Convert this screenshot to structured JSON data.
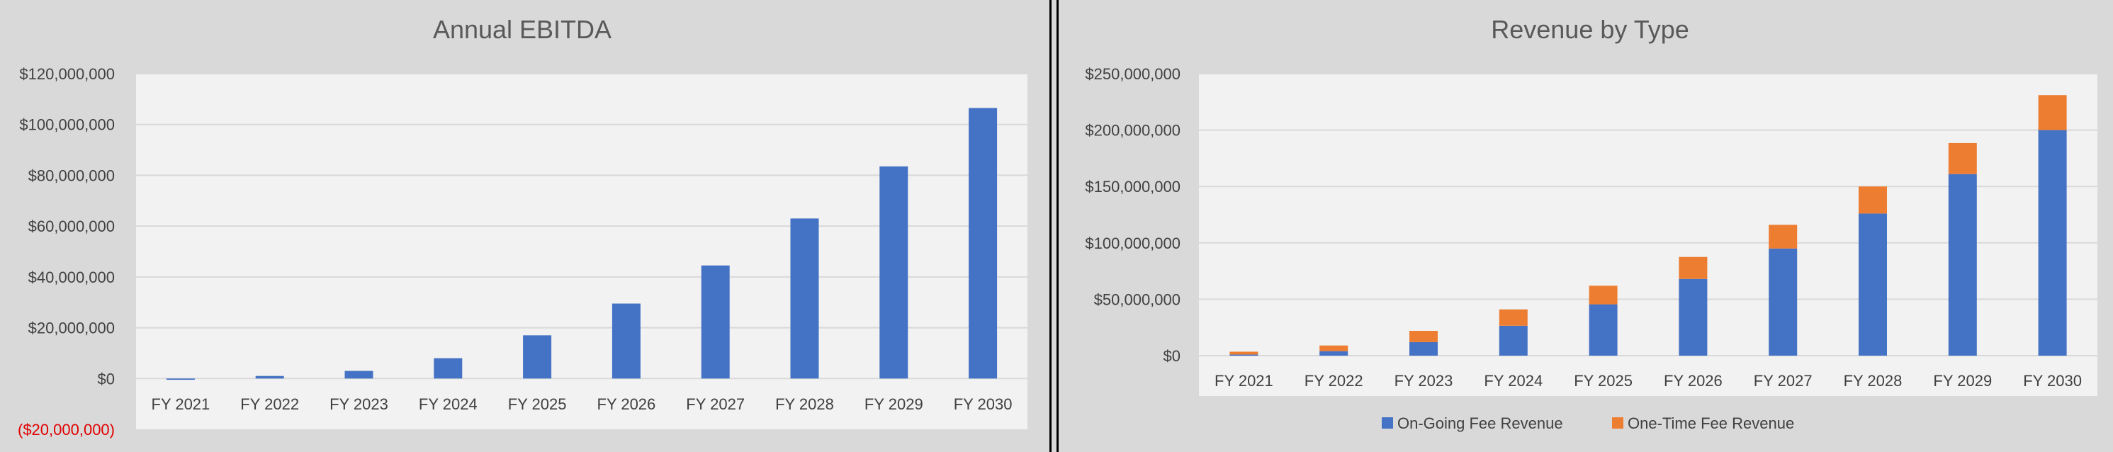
{
  "chart_data": [
    {
      "type": "bar",
      "title": "Annual EBITDA",
      "xlabel": "",
      "ylabel": "",
      "categories": [
        "FY 2021",
        "FY 2022",
        "FY 2023",
        "FY 2024",
        "FY 2025",
        "FY 2026",
        "FY 2027",
        "FY 2028",
        "FY 2029",
        "FY 2030"
      ],
      "values": [
        -500000,
        1000000,
        3000000,
        8000000,
        17000000,
        29500000,
        44500000,
        63000000,
        83500000,
        106500000
      ],
      "ylim": [
        -20000000,
        120000000
      ],
      "yticks": [
        -20000000,
        0,
        20000000,
        40000000,
        60000000,
        80000000,
        100000000,
        120000000
      ],
      "ytick_labels": [
        "($20,000,000)",
        "$0",
        "$20,000,000",
        "$40,000,000",
        "$60,000,000",
        "$80,000,000",
        "$100,000,000",
        "$120,000,000"
      ],
      "grid": true,
      "legend": false,
      "colors": {
        "bar": "#4472c4",
        "negative_label": "#e00000",
        "plot_bg": "#f2f2f2",
        "gridline": "#d9d9d9"
      }
    },
    {
      "type": "bar",
      "stacked": true,
      "title": "Revenue by Type",
      "xlabel": "",
      "ylabel": "",
      "categories": [
        "FY 2021",
        "FY 2022",
        "FY 2023",
        "FY 2024",
        "FY 2025",
        "FY 2026",
        "FY 2027",
        "FY 2028",
        "FY 2029",
        "FY 2030"
      ],
      "series": [
        {
          "name": "On-Going Fee Revenue",
          "color": "#4472c4",
          "values": [
            1000000,
            4000000,
            12000000,
            26500000,
            45500000,
            68000000,
            95000000,
            126000000,
            161000000,
            200000000
          ]
        },
        {
          "name": "One-Time Fee Revenue",
          "color": "#ed7d31",
          "values": [
            2500000,
            5000000,
            10000000,
            14500000,
            16500000,
            19500000,
            21000000,
            24000000,
            27500000,
            31000000
          ]
        }
      ],
      "ylim": [
        0,
        250000000
      ],
      "yticks": [
        0,
        50000000,
        100000000,
        150000000,
        200000000,
        250000000
      ],
      "ytick_labels": [
        "$0",
        "$50,000,000",
        "$100,000,000",
        "$150,000,000",
        "$200,000,000",
        "$250,000,000"
      ],
      "grid": true,
      "legend": "bottom",
      "colors": {
        "plot_bg": "#f2f2f2",
        "gridline": "#d9d9d9"
      }
    }
  ]
}
